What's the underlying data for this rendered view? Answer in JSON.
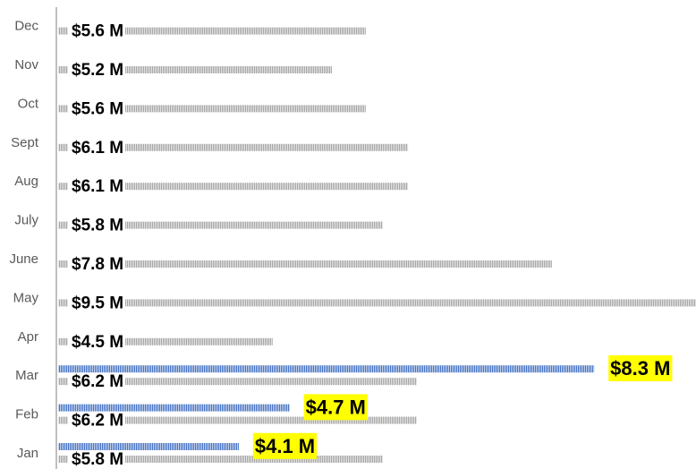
{
  "chart_data": {
    "type": "bar",
    "orientation": "horizontal",
    "categories": [
      "Jan",
      "Feb",
      "Mar",
      "Apr",
      "May",
      "June",
      "July",
      "Aug",
      "Sept",
      "Oct",
      "Nov",
      "Dec"
    ],
    "series": [
      {
        "color": "#a6a6a6",
        "values": [
          5.8,
          6.2,
          6.2,
          4.5,
          9.5,
          7.8,
          5.8,
          6.1,
          6.1,
          5.6,
          5.2,
          5.6
        ],
        "value_labels": [
          "$5.8 M",
          "$6.2 M",
          "$6.2 M",
          "$4.5 M",
          "$9.5 M",
          "$7.8 M",
          "$5.8 M",
          "$6.1 M",
          "$6.1 M",
          "$5.6 M",
          "$5.2 M",
          "$5.6 M"
        ]
      },
      {
        "color": "#4472c4",
        "values": [
          4.1,
          4.7,
          8.3,
          null,
          null,
          null,
          null,
          null,
          null,
          null,
          null,
          null
        ],
        "value_labels": [
          "$4.1 M",
          "$4.7 M",
          "$8.3 M",
          null,
          null,
          null,
          null,
          null,
          null,
          null,
          null,
          null
        ]
      }
    ]
  }
}
